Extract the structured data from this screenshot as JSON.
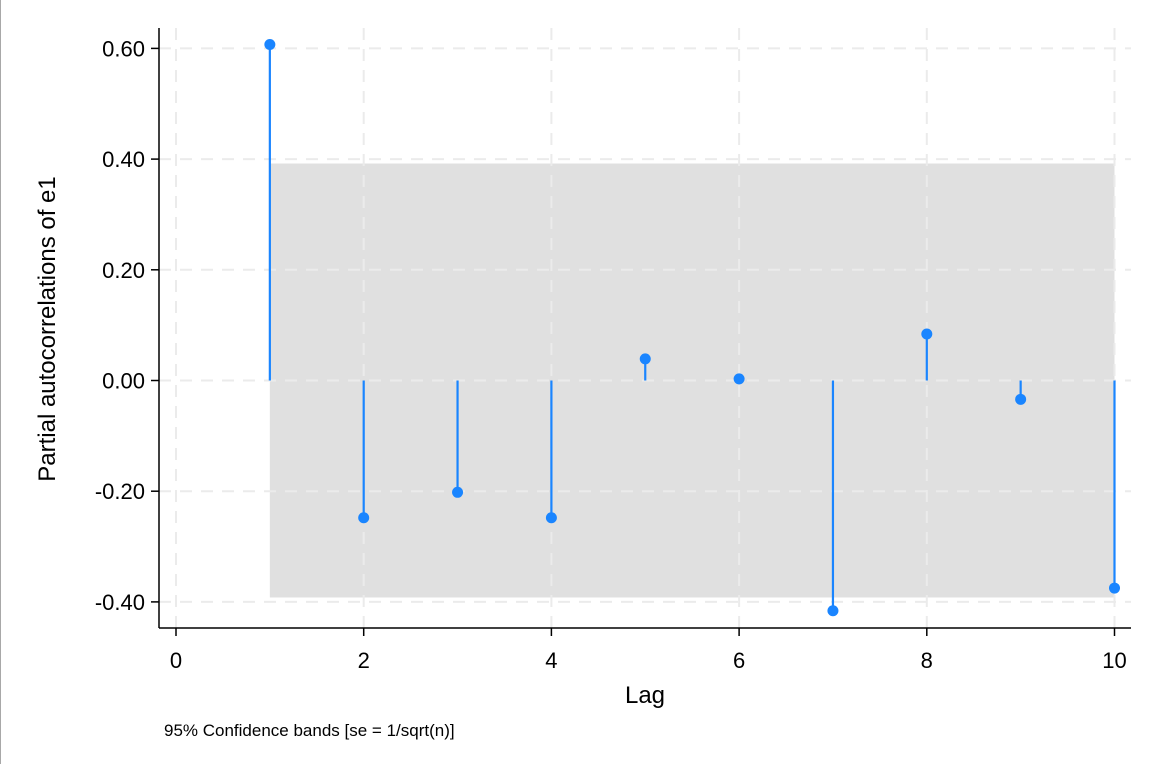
{
  "chart_data": {
    "type": "scatter",
    "subtype": "stem",
    "xlabel": "Lag",
    "ylabel": "Partial autocorrelations of e1",
    "note": "95% Confidence bands [se = 1/sqrt(n)]",
    "x": [
      1,
      2,
      3,
      4,
      5,
      6,
      7,
      8,
      9,
      10
    ],
    "values": [
      0.607,
      -0.248,
      -0.202,
      -0.248,
      0.039,
      0.003,
      -0.416,
      0.084,
      -0.034,
      -0.375
    ],
    "confidence_band": {
      "x_from": 1,
      "x_to": 10,
      "lower": -0.392,
      "upper": 0.392
    },
    "xlim": [
      -0.2,
      10.2
    ],
    "ylim": [
      -0.44,
      0.62
    ],
    "xticks": [
      0,
      2,
      4,
      6,
      8,
      10
    ],
    "xtick_labels": [
      "0",
      "2",
      "4",
      "6",
      "8",
      "10"
    ],
    "yticks": [
      0.6,
      0.4,
      0.2,
      0.0,
      -0.2,
      -0.4
    ],
    "ytick_labels": [
      "0.60",
      "0.40",
      "0.20",
      "0.00",
      "-0.20",
      "-0.40"
    ],
    "grid": true,
    "legend": "none",
    "colors": {
      "series": "#1a85ff",
      "band": "#e0e0e0",
      "grid": "#ebebeb",
      "axis": "#000000"
    }
  }
}
